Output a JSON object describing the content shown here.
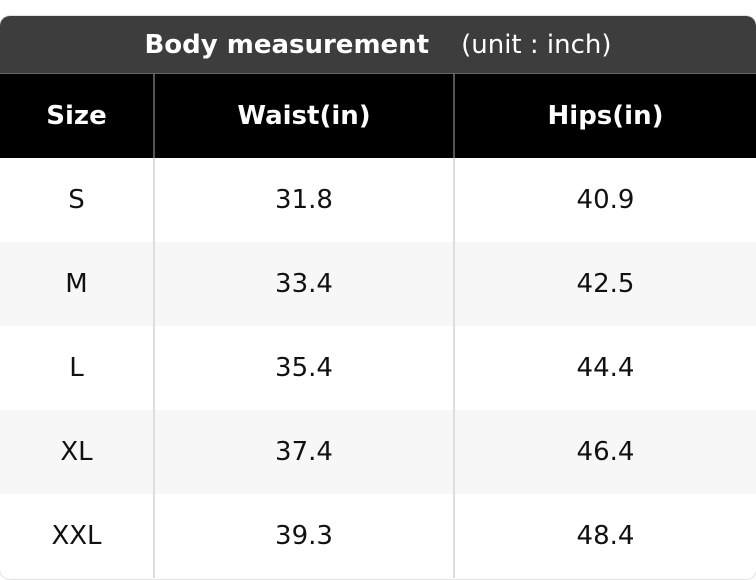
{
  "header": {
    "title": "Body measurement",
    "unit": "(unit : inch)"
  },
  "table": {
    "columns": [
      "Size",
      "Waist(in)",
      "Hips(in)"
    ],
    "rows": [
      [
        "S",
        31.8,
        40.9
      ],
      [
        "M",
        33.4,
        42.5
      ],
      [
        "L",
        35.4,
        44.4
      ],
      [
        "XL",
        37.4,
        46.4
      ],
      [
        "XXL",
        39.3,
        48.4
      ]
    ]
  }
}
